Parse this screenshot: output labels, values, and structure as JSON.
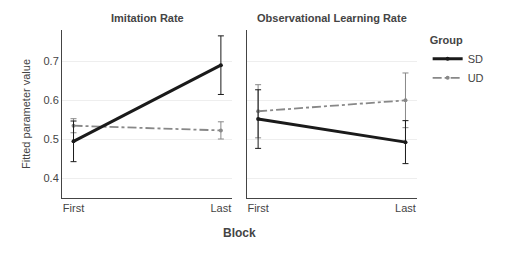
{
  "chart_data": [
    {
      "type": "line",
      "title": "Imitation Rate",
      "xlabel": "Block",
      "ylabel": "Fitted parameter value",
      "legend_title": "Group",
      "categories": [
        "First",
        "Last"
      ],
      "series": [
        {
          "name": "SD",
          "color": "#1a1a1a",
          "line_style": "solid",
          "values": [
            0.495,
            0.69
          ],
          "errors": [
            0.052,
            0.075
          ]
        },
        {
          "name": "UD",
          "color": "#888888",
          "line_style": "dashdot",
          "values": [
            0.535,
            0.523
          ],
          "errors": [
            0.018,
            0.022
          ]
        }
      ],
      "ylim": [
        0.35,
        0.78
      ],
      "yticks": [
        0.4,
        0.5,
        0.6,
        0.7
      ],
      "grid": true
    },
    {
      "type": "line",
      "title": "Observational Learning Rate",
      "categories": [
        "First",
        "Last"
      ],
      "series": [
        {
          "name": "SD",
          "color": "#1a1a1a",
          "line_style": "solid",
          "values": [
            0.552,
            0.493
          ],
          "errors": [
            0.075,
            0.055
          ]
        },
        {
          "name": "UD",
          "color": "#888888",
          "line_style": "dashdot",
          "values": [
            0.572,
            0.6
          ],
          "errors": [
            0.068,
            0.07
          ]
        }
      ],
      "ylim": [
        0.35,
        0.78
      ],
      "yticks": [
        0.4,
        0.5,
        0.6,
        0.7
      ],
      "grid": true,
      "tick_labels": "x"
    }
  ]
}
